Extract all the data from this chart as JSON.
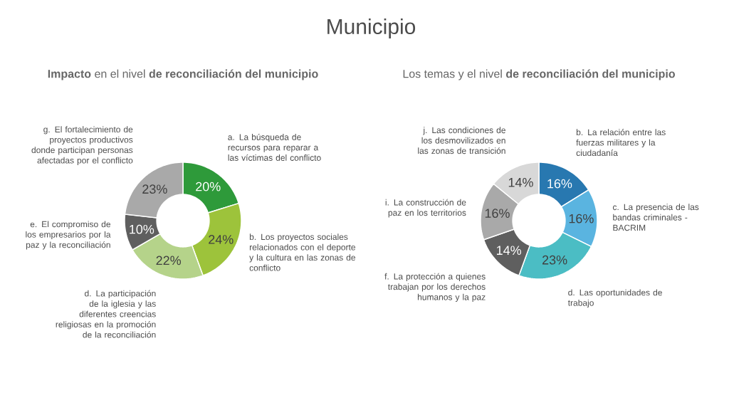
{
  "chart_data": [
    {
      "type": "donut",
      "title": "**Impacto** en el nivel **de reconciliación del municipio**",
      "annotations": [
        "Municipio"
      ],
      "categories": [
        "a. La búsqueda de recursos para reparar a las víctimas del conflicto",
        "b. Los proyectos sociales relacionados con el deporte y la cultura en las zonas de conflicto",
        "d. La participación de la iglesia y las diferentes creencias religiosas en la promoción de la reconciliación",
        "e. El compromiso de los empresarios por la paz y la reconciliación",
        "g. El fortalecimiento de proyectos productivos donde participan personas afectadas por el conflicto"
      ],
      "values": [
        20,
        24,
        22,
        10,
        23
      ],
      "value_labels": [
        "20%",
        "24%",
        "22%",
        "10%",
        "23%"
      ],
      "colors": [
        "#2e9a3a",
        "#9dc33b",
        "#b5d38a",
        "#5f5f5f",
        "#a9a9a9"
      ]
    },
    {
      "type": "donut",
      "title": "Los temas y el nivel **de reconciliación del municipio**",
      "categories": [
        "b. La relación entre las fuerzas militares y la ciudadanía",
        "c. La presencia de las bandas criminales - BACRIM",
        "d. Las oportunidades de trabajo",
        "f. La protección a quienes trabajan por los derechos humanos y la paz",
        "i. La construcción de paz en los territorios",
        "j. Las condiciones de los desmovilizados en las zonas de transición"
      ],
      "values": [
        16,
        16,
        23,
        14,
        16,
        14
      ],
      "value_labels": [
        "16%",
        "16%",
        "23%",
        "14%",
        "16%",
        "14%"
      ],
      "colors": [
        "#2878b0",
        "#5ab4e0",
        "#4bbdc4",
        "#5f5f5f",
        "#a9a9a9",
        "#d8d8d8"
      ]
    }
  ]
}
